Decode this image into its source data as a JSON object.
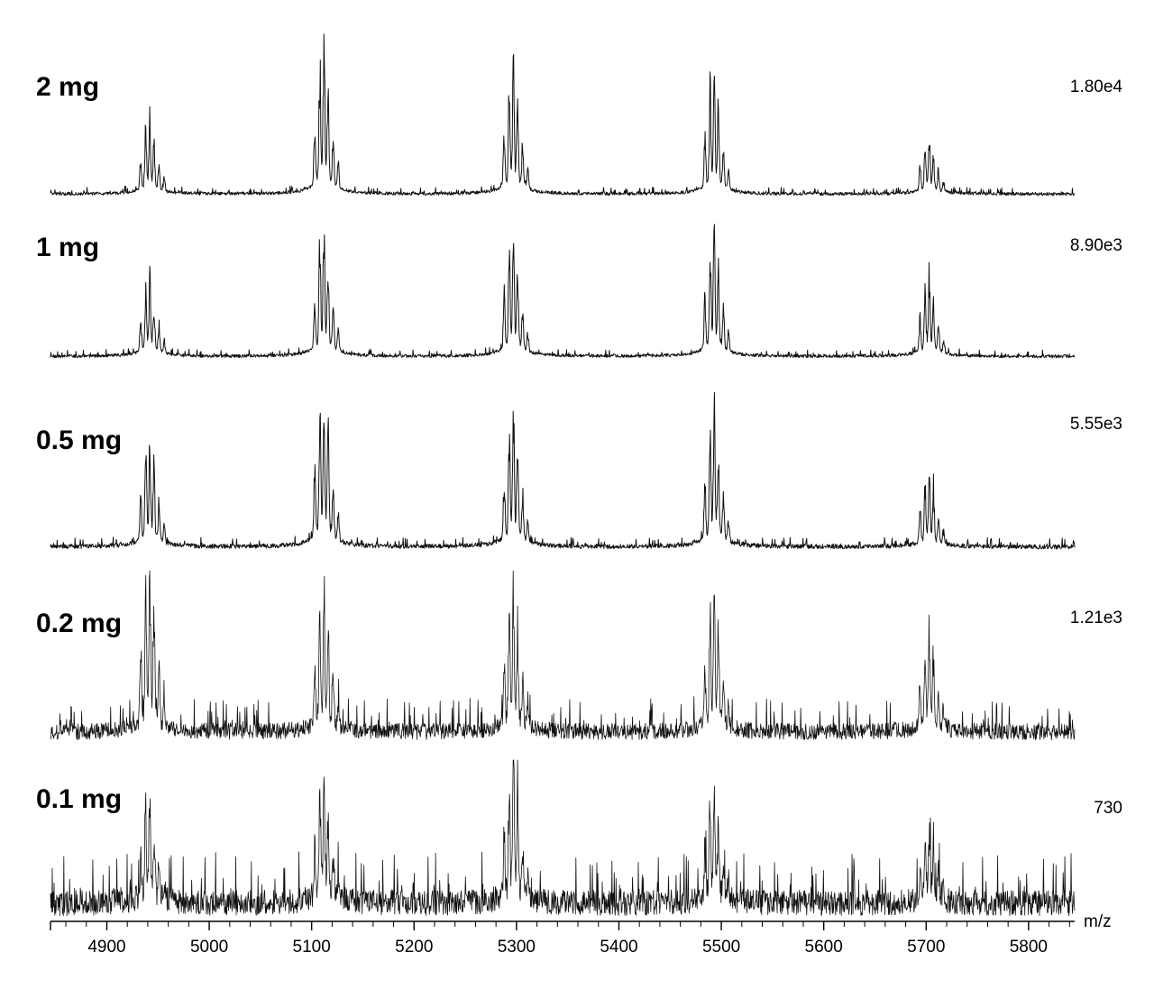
{
  "chart_data": {
    "type": "line",
    "xlabel": "m/z",
    "xlim": [
      4845,
      5845
    ],
    "xticks": [
      4900,
      5000,
      5100,
      5200,
      5300,
      5400,
      5500,
      5600,
      5700,
      5800
    ],
    "peak_centers": [
      4942,
      5112,
      5297,
      5493,
      5703
    ],
    "series": [
      {
        "name": "2 mg",
        "intensity_scale": "1.80e4",
        "relative_peak_heights": [
          0.5,
          1.0,
          0.85,
          0.78,
          0.4
        ]
      },
      {
        "name": "1 mg",
        "intensity_scale": "8.90e3",
        "relative_peak_heights": [
          0.58,
          1.0,
          0.95,
          0.95,
          0.62
        ]
      },
      {
        "name": "0.5 mg",
        "intensity_scale": "5.55e3",
        "relative_peak_heights": [
          0.68,
          1.0,
          0.85,
          0.88,
          0.47
        ]
      },
      {
        "name": "0.2 mg",
        "intensity_scale": "1.21e3",
        "relative_peak_heights": [
          1.0,
          0.9,
          0.92,
          0.9,
          0.62
        ]
      },
      {
        "name": "0.1 mg",
        "intensity_scale": "730",
        "relative_peak_heights": [
          0.72,
          0.9,
          1.0,
          0.82,
          0.55
        ]
      }
    ]
  },
  "colors": {
    "trace": "#111111",
    "axis": "#000000",
    "background": "#ffffff"
  }
}
